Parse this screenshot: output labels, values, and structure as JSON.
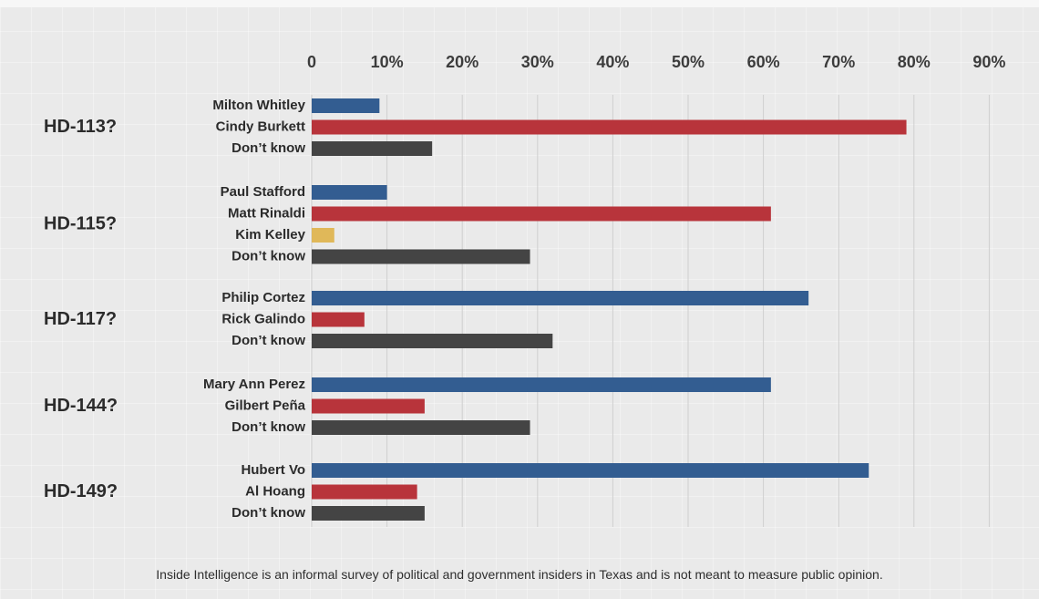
{
  "chart_data": {
    "type": "bar",
    "orientation": "horizontal",
    "xlim": [
      0,
      90
    ],
    "x_ticks": [
      "0",
      "10%",
      "20%",
      "30%",
      "40%",
      "50%",
      "60%",
      "70%",
      "80%",
      "90%"
    ],
    "tick_values": [
      0,
      10,
      20,
      30,
      40,
      50,
      60,
      70,
      80,
      90
    ],
    "grid": true,
    "legend": "none",
    "colors": {
      "blue": "#335d91",
      "red": "#b8343b",
      "yellow": "#e0b859",
      "gray": "#444444"
    },
    "groups": [
      {
        "label": "HD-113?",
        "bars": [
          {
            "label": "Milton Whitley",
            "value": 9,
            "color": "blue"
          },
          {
            "label": "Cindy Burkett",
            "value": 79,
            "color": "red"
          },
          {
            "label": "Don’t know",
            "value": 16,
            "color": "gray"
          }
        ]
      },
      {
        "label": "HD-115?",
        "bars": [
          {
            "label": "Paul Stafford",
            "value": 10,
            "color": "blue"
          },
          {
            "label": "Matt Rinaldi",
            "value": 61,
            "color": "red"
          },
          {
            "label": "Kim Kelley",
            "value": 3,
            "color": "yellow"
          },
          {
            "label": "Don’t know",
            "value": 29,
            "color": "gray"
          }
        ]
      },
      {
        "label": "HD-117?",
        "bars": [
          {
            "label": "Philip Cortez",
            "value": 66,
            "color": "blue"
          },
          {
            "label": "Rick Galindo",
            "value": 7,
            "color": "red"
          },
          {
            "label": "Don’t know",
            "value": 32,
            "color": "gray"
          }
        ]
      },
      {
        "label": "HD-144?",
        "bars": [
          {
            "label": "Mary Ann Perez",
            "value": 61,
            "color": "blue"
          },
          {
            "label": "Gilbert Peña",
            "value": 15,
            "color": "red"
          },
          {
            "label": "Don’t know",
            "value": 29,
            "color": "gray"
          }
        ]
      },
      {
        "label": "HD-149?",
        "bars": [
          {
            "label": "Hubert Vo",
            "value": 74,
            "color": "blue"
          },
          {
            "label": "Al Hoang",
            "value": 14,
            "color": "red"
          },
          {
            "label": "Don’t know",
            "value": 15,
            "color": "gray"
          }
        ]
      }
    ]
  },
  "footnote": "Inside Intelligence is an informal survey of political and government insiders in Texas and is not meant to measure public opinion."
}
